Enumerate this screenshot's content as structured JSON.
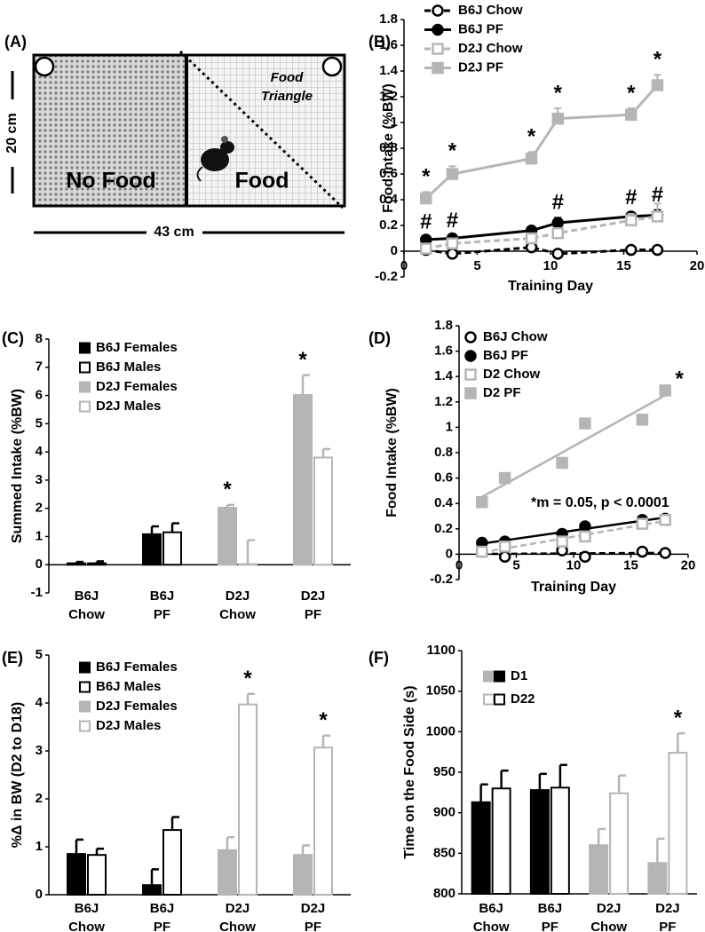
{
  "panel_a": {
    "panel_label": "(A)",
    "height_label": "20 cm",
    "width_label": "43 cm",
    "left_zone": "No Food",
    "right_zone": "Food",
    "triangle_lines": [
      "Food",
      "Triangle"
    ]
  },
  "chart_data": [
    {
      "type": "line",
      "panel_label": "(B)",
      "y_label": "Food Intake (%BW)",
      "x_label": "Training Day",
      "x": [
        1.5,
        3.3,
        8.7,
        10.5,
        15.5,
        17.3
      ],
      "xlim": [
        0,
        20
      ],
      "xticks": [
        0,
        5,
        10,
        15,
        20
      ],
      "ylim": [
        -0.2,
        1.8
      ],
      "yticks": [
        -0.2,
        0,
        0.2,
        0.4,
        0.6,
        0.8,
        1,
        1.2,
        1.4,
        1.6,
        1.8
      ],
      "series": [
        {
          "name": "B6J Chow",
          "color": "#000000",
          "dash": true,
          "marker_shape": "circle",
          "filled": false,
          "values": [
            0.01,
            -0.02,
            0.03,
            -0.02,
            0.01,
            0.01
          ]
        },
        {
          "name": "B6J PF",
          "color": "#000000",
          "dash": false,
          "marker_shape": "circle",
          "filled": true,
          "values": [
            0.09,
            0.1,
            0.16,
            0.22,
            0.27,
            0.28
          ],
          "errors": [
            0.02,
            0.02,
            0.03,
            0.04,
            0.03,
            0.04
          ],
          "significance": [
            "#",
            "#",
            null,
            "#",
            "#",
            "#"
          ]
        },
        {
          "name": "D2J Chow",
          "color": "#b5b5b5",
          "dash": true,
          "marker_shape": "square",
          "filled": false,
          "values": [
            0.02,
            0.06,
            0.1,
            0.14,
            0.24,
            0.27
          ],
          "errors": [
            0.02,
            0.03,
            0.03,
            0.03,
            0.05,
            0.1
          ]
        },
        {
          "name": "D2J PF",
          "color": "#b5b5b5",
          "dash": false,
          "marker_shape": "square",
          "filled": true,
          "values": [
            0.41,
            0.6,
            0.72,
            1.03,
            1.06,
            1.29
          ],
          "errors": [
            0.05,
            0.06,
            0.05,
            0.08,
            0.05,
            0.08
          ],
          "significance": [
            "*",
            "*",
            "*",
            "*",
            "*",
            "*"
          ]
        }
      ]
    },
    {
      "type": "bar",
      "panel_label": "(C)",
      "y_label": "Summed Intake (%BW)",
      "categories": [
        [
          "B6J",
          "Chow"
        ],
        [
          "B6J",
          "PF"
        ],
        [
          "D2J",
          "Chow"
        ],
        [
          "D2J",
          "PF"
        ]
      ],
      "ylim": [
        -1,
        8
      ],
      "yticks": [
        -1,
        0,
        1,
        2,
        3,
        4,
        5,
        6,
        7,
        8
      ],
      "significance_color": "#000000",
      "series": [
        {
          "name": "B6J Females",
          "color": "#000000",
          "filled": true,
          "values": [
            0.05,
            1.08,
            null,
            null
          ],
          "errors": [
            0.05,
            0.28,
            null,
            null
          ]
        },
        {
          "name": "B6J Males",
          "color": "#000000",
          "filled": false,
          "values": [
            0.05,
            1.15,
            null,
            null
          ],
          "errors": [
            0.07,
            0.32,
            null,
            null
          ]
        },
        {
          "name": "D2J Females",
          "color": "#b5b5b5",
          "filled": true,
          "values": [
            null,
            null,
            2.02,
            6.02
          ],
          "errors": [
            null,
            null,
            0.1,
            0.7
          ],
          "significance": [
            null,
            null,
            "*",
            "*"
          ]
        },
        {
          "name": "D2J Males",
          "color": "#b5b5b5",
          "filled": false,
          "values": [
            null,
            null,
            0.02,
            3.8
          ],
          "errors": [
            null,
            null,
            0.85,
            0.3
          ]
        }
      ]
    },
    {
      "type": "scatter",
      "panel_label": "(D)",
      "y_label": "Food Intake (%BW)",
      "x_label": "Training Day",
      "trendline": true,
      "annotation": "*m = 0.05, p < 0.0001",
      "x": [
        2,
        4,
        9,
        11,
        16,
        18
      ],
      "xlim": [
        0,
        20
      ],
      "xticks": [
        0,
        5,
        10,
        15,
        20
      ],
      "ylim": [
        -0.2,
        1.8
      ],
      "yticks": [
        -0.2,
        0,
        0.2,
        0.4,
        0.6,
        0.8,
        1,
        1.2,
        1.4,
        1.6,
        1.8
      ],
      "series": [
        {
          "name": "B6J Chow",
          "color": "#000000",
          "dash": true,
          "marker_shape": "circle",
          "filled": false,
          "values": [
            0.02,
            -0.02,
            0.03,
            -0.02,
            0.02,
            0.01
          ]
        },
        {
          "name": "B6J PF",
          "color": "#000000",
          "dash": false,
          "marker_shape": "circle",
          "filled": true,
          "values": [
            0.09,
            0.1,
            0.16,
            0.22,
            0.27,
            0.28
          ]
        },
        {
          "name": "D2 Chow",
          "color": "#b5b5b5",
          "dash": true,
          "marker_shape": "square",
          "filled": false,
          "values": [
            0.02,
            0.06,
            0.1,
            0.14,
            0.24,
            0.27
          ]
        },
        {
          "name": "D2 PF",
          "color": "#b5b5b5",
          "dash": false,
          "marker_shape": "square",
          "filled": true,
          "values": [
            0.41,
            0.6,
            0.72,
            1.03,
            1.06,
            1.29
          ],
          "significance": [
            null,
            null,
            null,
            null,
            null,
            "*"
          ]
        }
      ]
    },
    {
      "type": "bar",
      "panel_label": "(E)",
      "y_label": "%Δ in BW (D2 to D18)",
      "categories": [
        [
          "B6J",
          "Chow"
        ],
        [
          "B6J",
          "PF"
        ],
        [
          "D2J",
          "Chow"
        ],
        [
          "D2J",
          "PF"
        ]
      ],
      "ylim": [
        0,
        5
      ],
      "yticks": [
        0,
        1,
        2,
        3,
        4,
        5
      ],
      "significance_color": "#000000",
      "series": [
        {
          "name": "B6J Females",
          "color": "#000000",
          "filled": true,
          "values": [
            0.85,
            0.2,
            null,
            null
          ],
          "errors": [
            0.3,
            0.33,
            null,
            null
          ]
        },
        {
          "name": "B6J Males",
          "color": "#000000",
          "filled": false,
          "values": [
            0.83,
            1.35,
            null,
            null
          ],
          "errors": [
            0.13,
            0.27,
            null,
            null
          ]
        },
        {
          "name": "D2J Females",
          "color": "#b5b5b5",
          "filled": true,
          "values": [
            null,
            null,
            0.93,
            0.83
          ],
          "errors": [
            null,
            null,
            0.27,
            0.2
          ]
        },
        {
          "name": "D2J Males",
          "color": "#b5b5b5",
          "filled": false,
          "values": [
            null,
            null,
            3.97,
            3.07
          ],
          "errors": [
            null,
            null,
            0.22,
            0.25
          ],
          "significance": [
            null,
            null,
            "*",
            "*"
          ]
        }
      ]
    },
    {
      "type": "bar",
      "panel_label": "(F)",
      "y_label": "Time on the Food Side (s)",
      "categories": [
        [
          "B6J",
          "Chow"
        ],
        [
          "B6J",
          "PF"
        ],
        [
          "D2J",
          "Chow"
        ],
        [
          "D2J",
          "PF"
        ]
      ],
      "category_colors": [
        "#000000",
        "#000000",
        "#b5b5b5",
        "#b5b5b5"
      ],
      "ylim": [
        800,
        1100
      ],
      "yticks": [
        800,
        850,
        900,
        950,
        1000,
        1050,
        1100
      ],
      "significance_color": "#000000",
      "series": [
        {
          "name": "D1",
          "filled": true,
          "values": [
            913,
            928,
            860,
            838
          ],
          "errors": [
            22,
            20,
            20,
            30
          ]
        },
        {
          "name": "D22",
          "filled": false,
          "values": [
            930,
            931,
            924,
            974
          ],
          "errors": [
            22,
            28,
            22,
            24
          ],
          "significance": [
            null,
            null,
            null,
            "*"
          ]
        }
      ]
    }
  ]
}
